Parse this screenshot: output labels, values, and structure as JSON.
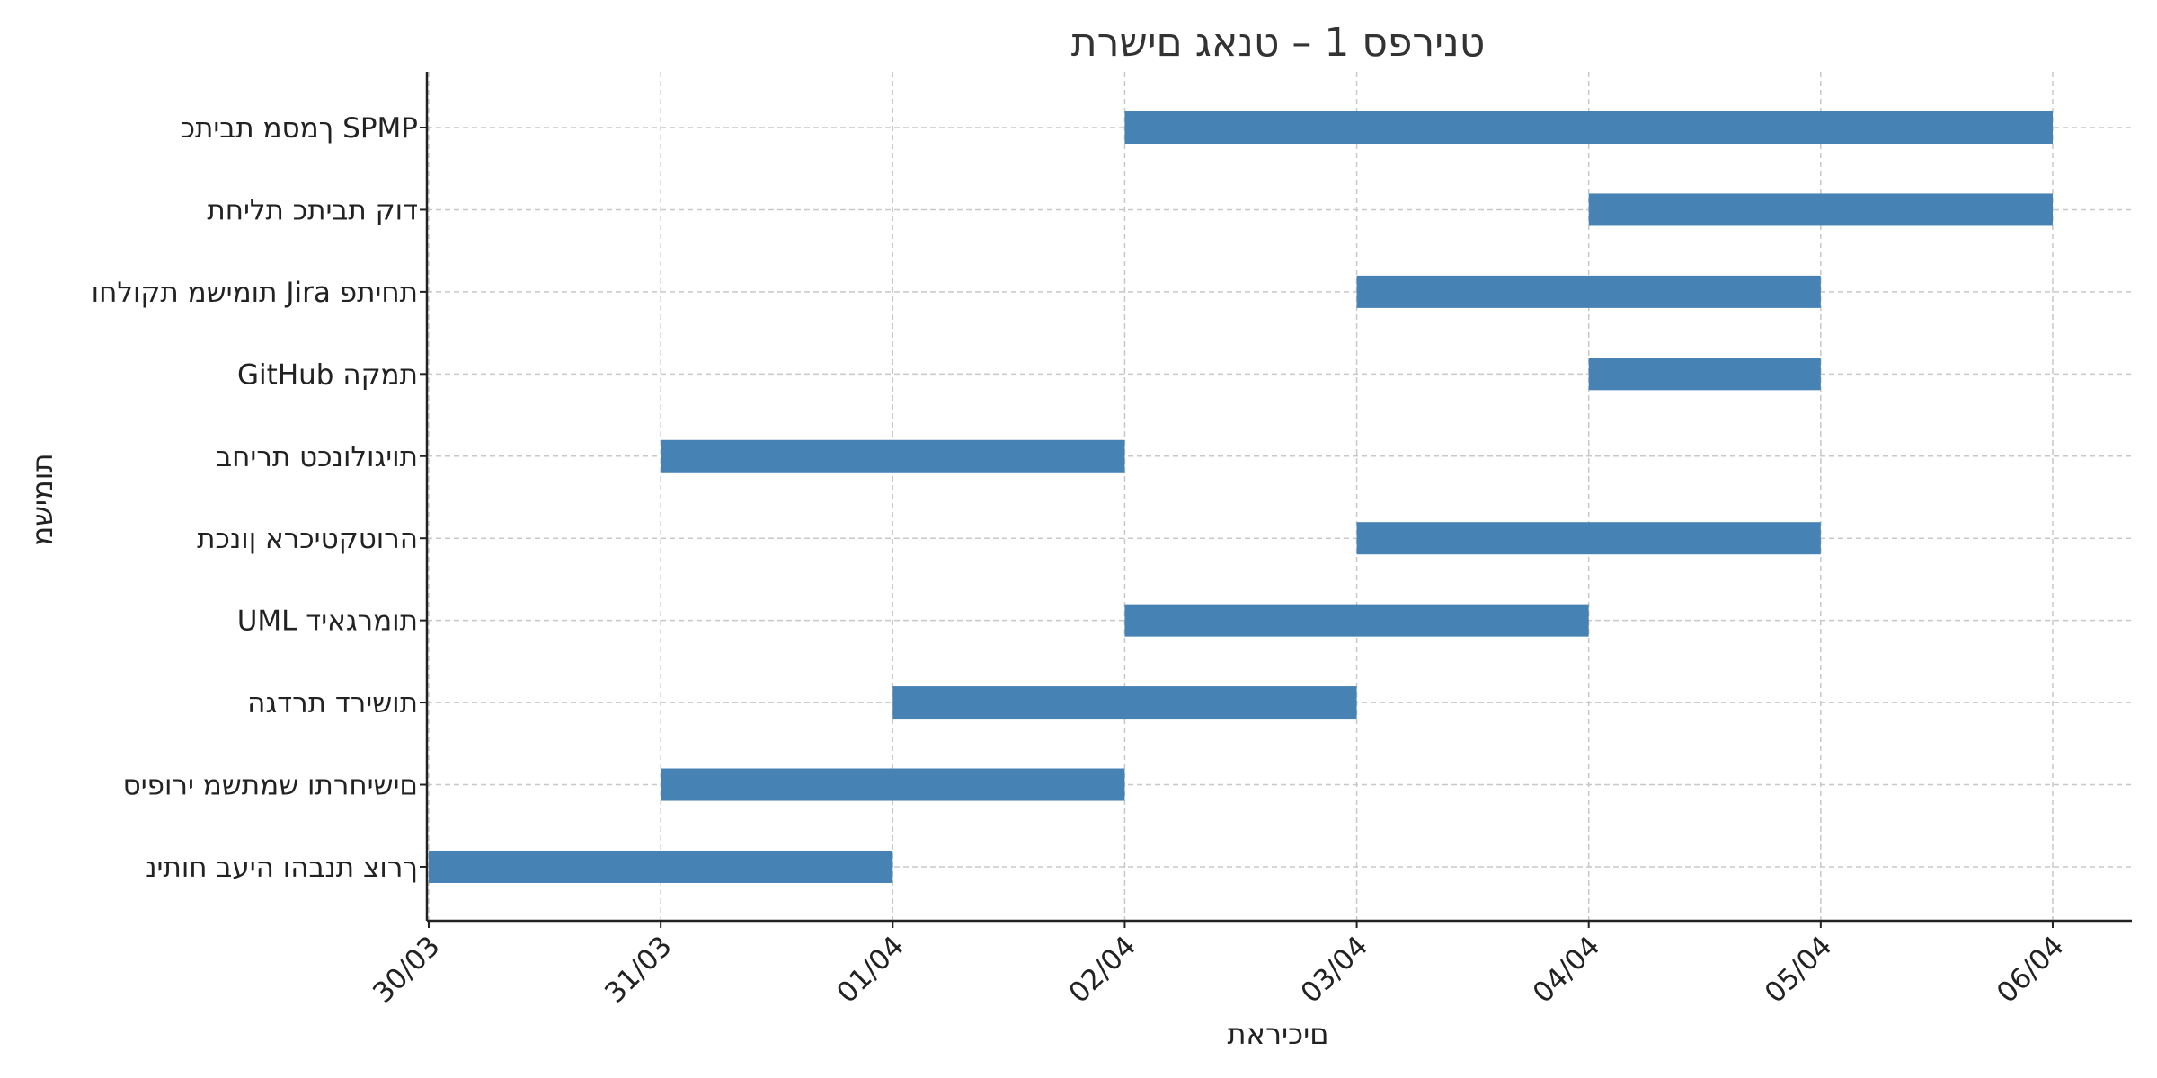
{
  "chart_data": {
    "type": "bar",
    "orientation": "horizontal-gantt",
    "title": "טנירפס 1 – טנאג םישרת",
    "xlabel": "םיכיראת",
    "ylabel": "תומישמ",
    "x_tick_labels": [
      "30/03",
      "31/03",
      "01/04",
      "02/04",
      "03/04",
      "04/04",
      "05/04",
      "06/04"
    ],
    "xlim": [
      "30/03",
      "06/04"
    ],
    "grid": true,
    "bar_color": "#4682b4",
    "tasks": [
      {
        "label": "ךמסמ תביתכ SPMP",
        "start": "02/04",
        "end": "06/04"
      },
      {
        "label": "דוק תביתכ תליחת",
        "start": "04/04",
        "end": "06/04"
      },
      {
        "label": "תומישמ תקולחו Jira תחיתפ",
        "start": "03/04",
        "end": "05/04"
      },
      {
        "label": "GitHub תמקה",
        "start": "04/04",
        "end": "05/04"
      },
      {
        "label": "תויגולונכט תריחב",
        "start": "31/03",
        "end": "02/04"
      },
      {
        "label": "הרוטקטיכרא ןונכת",
        "start": "03/04",
        "end": "05/04"
      },
      {
        "label": "UML תומרגאיד",
        "start": "02/04",
        "end": "04/04"
      },
      {
        "label": "תושירד תרדגה",
        "start": "01/04",
        "end": "03/04"
      },
      {
        "label": "םישיחרתו שמתשמ ירופיס",
        "start": "31/03",
        "end": "02/04"
      },
      {
        "label": "ךרוצ תנבהו היעב חותינ",
        "start": "30/03",
        "end": "01/04"
      }
    ]
  }
}
